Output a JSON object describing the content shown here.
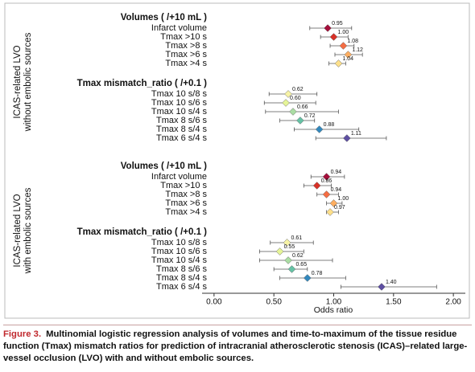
{
  "chart_data": {
    "type": "forest",
    "xlabel": "Odds ratio",
    "xlim": [
      -0.1,
      2.1
    ],
    "xticks": [
      {
        "value": 0,
        "label": "0.00"
      },
      {
        "value": 0.5,
        "label": "0.50"
      },
      {
        "value": 1,
        "label": "1.00"
      },
      {
        "value": 1.5,
        "label": "1.50"
      },
      {
        "value": 2,
        "label": "2.00"
      }
    ],
    "panels": [
      {
        "label_lines": [
          "ICAS-related LVO",
          "without embolic sources"
        ],
        "groups": [
          {
            "title": "Volumes ( /+10 mL )",
            "categories": [
              "Infarct volume",
              "Tmax >10 s",
              "Tmax >8 s",
              "Tmax >6 s",
              "Tmax >4 s"
            ],
            "values": [
              0.95,
              1.0,
              1.08,
              1.12,
              1.04
            ],
            "value_labels": [
              "0.95",
              "1.00",
              "1.08",
              "1.12",
              "1.04"
            ],
            "ci_low": [
              0.8,
              0.89,
              0.97,
              1.01,
              0.96
            ],
            "ci_high": [
              1.15,
              1.12,
              1.17,
              1.24,
              1.1
            ],
            "colors": [
              "#a50f3b",
              "#d73027",
              "#f46d43",
              "#fdae61",
              "#fee08b"
            ]
          },
          {
            "title": "Tmax mismatch_ratio ( /+0.1 )",
            "categories": [
              "Tmax 10 s/8 s",
              "Tmax 10 s/6 s",
              "Tmax 10 s/4 s",
              "Tmax 8 s/6 s",
              "Tmax 8 s/4 s",
              "Tmax 6 s/4 s"
            ],
            "values": [
              0.62,
              0.6,
              0.66,
              0.72,
              0.88,
              1.11
            ],
            "value_labels": [
              "0.62",
              "0.60",
              "0.66",
              "0.72",
              "0.88",
              "1.11"
            ],
            "ci_low": [
              0.46,
              0.42,
              0.43,
              0.55,
              0.67,
              0.85
            ],
            "ci_high": [
              0.86,
              0.85,
              1.04,
              0.84,
              1.21,
              1.44
            ],
            "colors": [
              "#f7f3a6",
              "#e6f598",
              "#abdda4",
              "#66c2a5",
              "#3288bd",
              "#5e4fa2"
            ]
          }
        ]
      },
      {
        "label_lines": [
          "ICAS-related LVO",
          "with embolic sources"
        ],
        "groups": [
          {
            "title": "Volumes ( /+10 mL )",
            "categories": [
              "Infarct volume",
              "Tmax >10 s",
              "Tmax >8 s",
              "Tmax >6 s",
              "Tmax >4 s"
            ],
            "values": [
              0.94,
              0.86,
              0.94,
              1.0,
              0.97
            ],
            "value_labels": [
              "0.94",
              "0.86",
              "0.94",
              "1.00",
              "0.97"
            ],
            "ci_low": [
              0.81,
              0.75,
              0.86,
              0.94,
              0.94
            ],
            "ci_high": [
              1.09,
              0.98,
              1.04,
              1.07,
              1.04
            ],
            "colors": [
              "#a50f3b",
              "#d73027",
              "#f46d43",
              "#fdae61",
              "#fee08b"
            ]
          },
          {
            "title": "Tmax mismatch_ratio ( /+0.1 )",
            "categories": [
              "Tmax 10 s/8 s",
              "Tmax 10 s/6 s",
              "Tmax 10 s/4 s",
              "Tmax 8 s/6 s",
              "Tmax 8 s/4 s",
              "Tmax 6 s/4 s"
            ],
            "values": [
              0.61,
              0.55,
              0.62,
              0.65,
              0.78,
              1.4
            ],
            "value_labels": [
              "0.61",
              "0.55",
              "0.62",
              "0.65",
              "0.78",
              "1.40"
            ],
            "ci_low": [
              0.47,
              0.38,
              0.38,
              0.5,
              0.55,
              1.06
            ],
            "ci_high": [
              0.83,
              0.75,
              0.99,
              0.78,
              1.1,
              1.86
            ],
            "colors": [
              "#f7f3a6",
              "#e6f598",
              "#abdda4",
              "#66c2a5",
              "#3288bd",
              "#5e4fa2"
            ]
          }
        ]
      }
    ]
  },
  "caption": {
    "figure_label": "Figure 3.",
    "text": "Multinomial logistic regression analysis of volumes and time-to-maximum of the tissue residue function (Tmax) mismatch ratios for prediction of intracranial atherosclerotic stenosis (ICAS)–related large-vessel occlusion (LVO) with and without embolic sources."
  }
}
